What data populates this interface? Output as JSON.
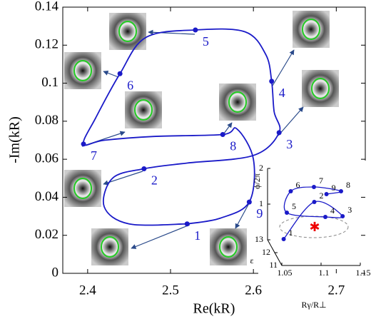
{
  "chart_data": [
    {
      "type": "line",
      "xlabel": "Re(kR)",
      "ylabel": "-Im(kR)",
      "color": "#1a1ac8",
      "xlim": [
        2.37,
        2.735
      ],
      "ylim": [
        0,
        0.14
      ],
      "xticks": [
        2.4,
        2.5,
        2.6,
        2.7
      ],
      "yticks": [
        0,
        0.02,
        0.04,
        0.06,
        0.08,
        0.1,
        0.12,
        0.14
      ],
      "x": [
        2.52,
        2.56,
        2.595,
        2.6,
        2.58,
        2.563,
        2.48,
        2.42,
        2.395,
        2.41,
        2.439,
        2.47,
        2.53,
        2.59,
        2.615,
        2.622,
        2.625,
        2.631,
        2.6,
        2.52,
        2.468,
        2.43,
        2.42,
        2.45,
        2.52
      ],
      "y": [
        0.026,
        0.029,
        0.0375,
        0.06,
        0.076,
        0.073,
        0.072,
        0.07,
        0.068,
        0.082,
        0.105,
        0.124,
        0.128,
        0.127,
        0.115,
        0.101,
        0.085,
        0.074,
        0.062,
        0.058,
        0.055,
        0.05,
        0.035,
        0.026,
        0.026
      ],
      "points": {
        "labels": [
          "1",
          "2",
          "3",
          "4",
          "5",
          "6",
          "7",
          "8",
          "9"
        ],
        "x": [
          2.52,
          2.468,
          2.631,
          2.622,
          2.53,
          2.439,
          2.395,
          2.563,
          2.595
        ],
        "y": [
          0.026,
          0.055,
          0.074,
          0.101,
          0.128,
          0.105,
          0.068,
          0.073,
          0.0375
        ]
      }
    },
    {
      "type": "line3d",
      "zlabel": "ϕ/2π",
      "xlabel": "ε",
      "ylabel": "Rγ/R⊥",
      "color": "#1a1ac8",
      "zticks": [
        1,
        2
      ],
      "eps_ticks": [
        11,
        12,
        13
      ],
      "rticks": [
        1.05,
        1.1,
        1.15
      ],
      "labels": [
        "1",
        "2",
        "3",
        "4",
        "5",
        "6",
        "7",
        "8",
        "9"
      ],
      "eps": [
        12.5,
        12.5,
        11.5,
        11.5,
        12.5,
        12.5,
        12,
        11.5,
        12
      ],
      "r": [
        1.066,
        1.105,
        1.132,
        1.11,
        1.07,
        1.075,
        1.1,
        1.13,
        1.116
      ],
      "z": [
        0.2,
        1.24,
        1.2,
        1.18,
        0.94,
        1.54,
        1.84,
        1.9,
        1.64
      ]
    }
  ]
}
